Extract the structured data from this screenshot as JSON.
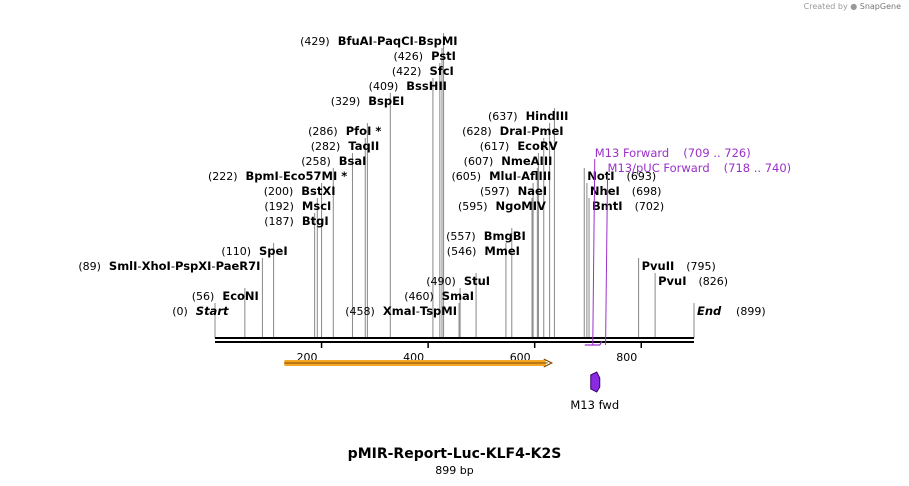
{
  "credit": {
    "prefix": "Created by",
    "brand": "SnapGene"
  },
  "plasmid": {
    "name": "pMIR-Report-Luc-KLF4-K2S",
    "length": "899 bp",
    "total_bp": 899
  },
  "ruler": {
    "ticks": [
      "200",
      "400",
      "600",
      "800"
    ]
  },
  "sites": [
    {
      "bp": 0,
      "pos": "(0)",
      "names": [
        "Start"
      ],
      "italic": true,
      "row": 0
    },
    {
      "bp": 56,
      "pos": "(56)",
      "names": [
        "EcoNI"
      ],
      "row": 1
    },
    {
      "bp": 89,
      "pos": "(89)",
      "names": [
        "SmlI",
        "XhoI",
        "PspXI",
        "PaeR7I"
      ],
      "row": 3,
      "side": "left"
    },
    {
      "bp": 110,
      "pos": "(110)",
      "names": [
        "SpeI"
      ],
      "row": 4
    },
    {
      "bp": 187,
      "pos": "(187)",
      "names": [
        "BtgI"
      ],
      "row": 6
    },
    {
      "bp": 192,
      "pos": "(192)",
      "names": [
        "MscI"
      ],
      "row": 7
    },
    {
      "bp": 200,
      "pos": "(200)",
      "names": [
        "BstXI"
      ],
      "row": 8
    },
    {
      "bp": 222,
      "pos": "(222)",
      "names": [
        "BpmI",
        "Eco57MI *"
      ],
      "row": 9
    },
    {
      "bp": 258,
      "pos": "(258)",
      "names": [
        "BsaI"
      ],
      "row": 10
    },
    {
      "bp": 282,
      "pos": "(282)",
      "names": [
        "TaqII"
      ],
      "row": 11
    },
    {
      "bp": 286,
      "pos": "(286)",
      "names": [
        "PfoI *"
      ],
      "row": 12
    },
    {
      "bp": 329,
      "pos": "(329)",
      "names": [
        "BspEI"
      ],
      "row": 14
    },
    {
      "bp": 409,
      "pos": "(409)",
      "names": [
        "BssHII"
      ],
      "row": 15
    },
    {
      "bp": 422,
      "pos": "(422)",
      "names": [
        "SfcI"
      ],
      "row": 16
    },
    {
      "bp": 426,
      "pos": "(426)",
      "names": [
        "PstI"
      ],
      "row": 17
    },
    {
      "bp": 429,
      "pos": "(429)",
      "names": [
        "BfuAI",
        "PaqCI",
        "BspMI"
      ],
      "row": 18
    },
    {
      "bp": 458,
      "pos": "(458)",
      "names": [
        "XmaI",
        "TspMI"
      ],
      "row": 0,
      "side": "left"
    },
    {
      "bp": 460,
      "pos": "(460)",
      "names": [
        "SmaI"
      ],
      "row": 1
    },
    {
      "bp": 490,
      "pos": "(490)",
      "names": [
        "StuI"
      ],
      "row": 2
    },
    {
      "bp": 546,
      "pos": "(546)",
      "names": [
        "MmeI"
      ],
      "row": 4
    },
    {
      "bp": 557,
      "pos": "(557)",
      "names": [
        "BmgBI"
      ],
      "row": 5
    },
    {
      "bp": 595,
      "pos": "(595)",
      "names": [
        "NgoMIV"
      ],
      "row": 7
    },
    {
      "bp": 597,
      "pos": "(597)",
      "names": [
        "NaeI"
      ],
      "row": 8
    },
    {
      "bp": 605,
      "pos": "(605)",
      "names": [
        "MluI",
        "AflIII"
      ],
      "row": 9
    },
    {
      "bp": 607,
      "pos": "(607)",
      "names": [
        "NmeAIII"
      ],
      "row": 10
    },
    {
      "bp": 617,
      "pos": "(617)",
      "names": [
        "EcoRV"
      ],
      "row": 11
    },
    {
      "bp": 628,
      "pos": "(628)",
      "names": [
        "DraI",
        "PmeI"
      ],
      "row": 12
    },
    {
      "bp": 637,
      "pos": "(637)",
      "names": [
        "HindIII"
      ],
      "row": 13
    },
    {
      "bp": 693,
      "pos": "(693)",
      "names": [
        "NotI"
      ],
      "row": 9,
      "side": "right"
    },
    {
      "bp": 698,
      "pos": "(698)",
      "names": [
        "NheI"
      ],
      "row": 8,
      "side": "right"
    },
    {
      "bp": 702,
      "pos": "(702)",
      "names": [
        "BmtI"
      ],
      "row": 7,
      "side": "right"
    },
    {
      "bp": 795,
      "pos": "(795)",
      "names": [
        "PvuII"
      ],
      "row": 3,
      "side": "right"
    },
    {
      "bp": 826,
      "pos": "(826)",
      "names": [
        "PvuI"
      ],
      "row": 2,
      "side": "right"
    },
    {
      "bp": 899,
      "pos": "(899)",
      "names": [
        "End"
      ],
      "italic": true,
      "row": 0,
      "side": "right"
    }
  ],
  "primers": [
    {
      "name": "M13 Forward",
      "range": "(709 .. 726)",
      "start": 709,
      "end": 726,
      "row": 5
    },
    {
      "name": "M13/pUC Forward",
      "range": "(718 .. 740)",
      "start": 718,
      "end": 740,
      "row": 4
    }
  ],
  "features": [
    {
      "name": "",
      "start": 130,
      "end": 632,
      "color": "#f5a623",
      "direction": "forward"
    },
    {
      "name": "M13 fwd",
      "start": 709,
      "end": 726,
      "color": "#8a2be2",
      "direction": "forward"
    }
  ]
}
